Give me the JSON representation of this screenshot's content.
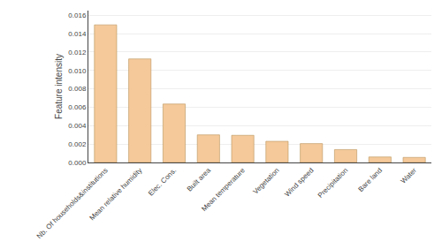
{
  "chart_data": {
    "type": "bar",
    "categories": [
      "Nb. Of households&institutions",
      "Mean relative humidity",
      "Elec. Cons.",
      "Built area",
      "Mean temperature",
      "Vegetation",
      "Wind speed",
      "Precipitation",
      "Bare land",
      "Water"
    ],
    "values": [
      0.01495,
      0.01125,
      0.00635,
      0.003,
      0.00295,
      0.0023,
      0.00205,
      0.0014,
      0.0006,
      0.00055
    ],
    "color": "#F5C99A",
    "ylabel": "Feature intensity",
    "ylim": [
      0,
      0.0165
    ],
    "yticks": [
      {
        "value": 0,
        "label": "0.000"
      },
      0.002,
      0.004,
      0.006,
      0.008,
      {
        "value": 0.01,
        "label": "0.010"
      },
      0.012,
      0.014,
      0.016
    ],
    "grid": true
  }
}
